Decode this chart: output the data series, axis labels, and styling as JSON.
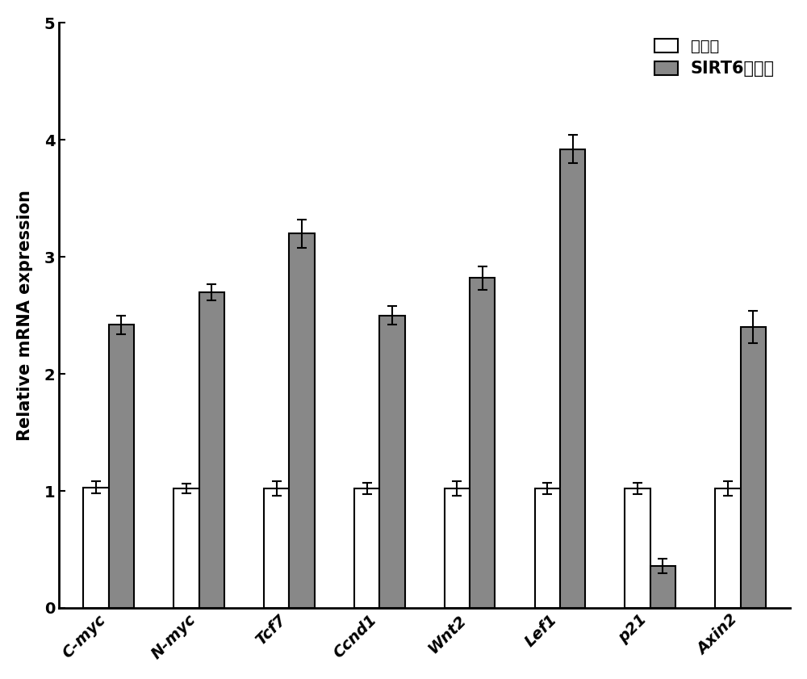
{
  "categories": [
    "C-myc",
    "N-myc",
    "Tcf7",
    "Ccnd1",
    "Wnt2",
    "Lef1",
    "p21",
    "Axin2"
  ],
  "control_values": [
    1.03,
    1.02,
    1.02,
    1.02,
    1.02,
    1.02,
    1.02,
    1.02
  ],
  "sirt6_values": [
    2.42,
    2.7,
    3.2,
    2.5,
    2.82,
    3.92,
    0.36,
    2.4
  ],
  "control_errors": [
    0.05,
    0.04,
    0.06,
    0.05,
    0.06,
    0.05,
    0.05,
    0.06
  ],
  "sirt6_errors": [
    0.08,
    0.07,
    0.12,
    0.08,
    0.1,
    0.12,
    0.06,
    0.14
  ],
  "control_color": "#ffffff",
  "sirt6_color": "#888888",
  "bar_edge_color": "#000000",
  "ylabel": "Relative mRNA expression",
  "ylim": [
    0,
    5
  ],
  "yticks": [
    0,
    1,
    2,
    3,
    4,
    5
  ],
  "legend_label1": "对照组",
  "legend_label2": "SIRT6敏除组",
  "bar_width": 0.28,
  "figsize": [
    10.0,
    8.41
  ],
  "dpi": 100,
  "background_color": "#ffffff",
  "font_size_ticks": 14,
  "font_size_ylabel": 15,
  "font_size_legend": 14,
  "elinewidth": 1.5,
  "capsize": 4,
  "capthick": 1.5
}
